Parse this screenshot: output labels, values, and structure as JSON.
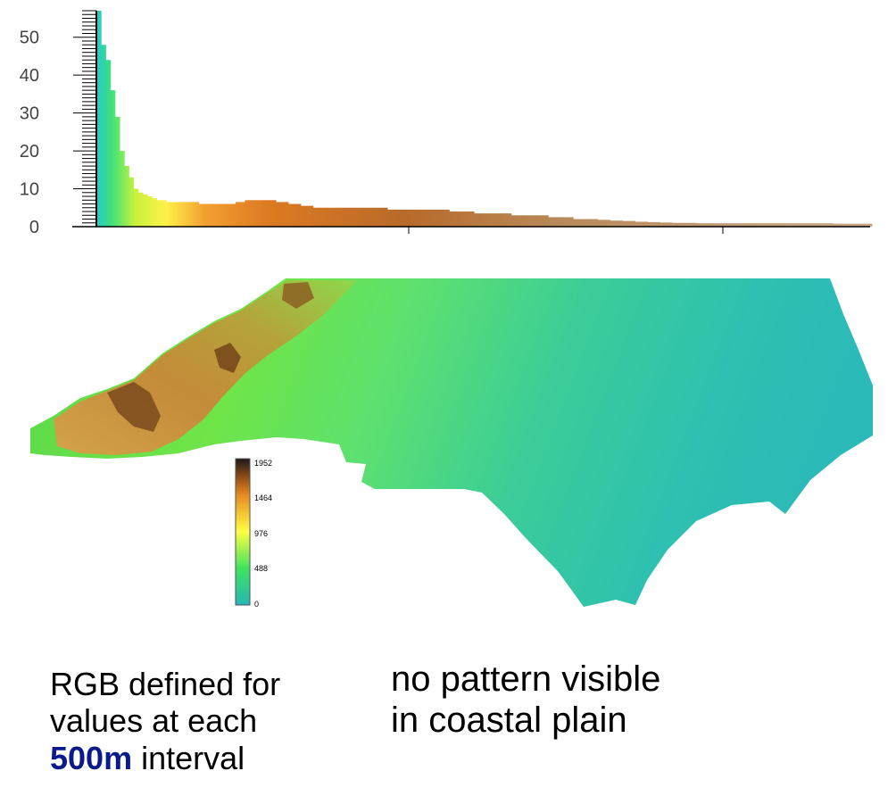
{
  "colors": {
    "accent": "#0a1a8c",
    "ramp": [
      "#26b7b7",
      "#3fe35f",
      "#ffff44",
      "#e88a22",
      "#8b4a16",
      "#1a1a1a"
    ]
  },
  "chart_data": {
    "type": "bar",
    "title": "",
    "xlabel": "",
    "ylabel": "",
    "ylim": [
      0,
      57
    ],
    "yticks": [
      "0",
      "10",
      "20",
      "30",
      "40",
      "50"
    ],
    "x": [
      0,
      15,
      30,
      45,
      60,
      75,
      90,
      105,
      120,
      135,
      150,
      165,
      180,
      195,
      210,
      225,
      240,
      260,
      280,
      300,
      330,
      360,
      390,
      420,
      450,
      480,
      510,
      540,
      580,
      620,
      660,
      700,
      740,
      780,
      820,
      860,
      900,
      940,
      980,
      1020,
      1060,
      1100,
      1140,
      1180,
      1220,
      1260,
      1300,
      1340,
      1380,
      1420,
      1460,
      1500,
      1540,
      1580,
      1620,
      1660,
      1700,
      1740,
      1780,
      1820,
      1860,
      1900,
      1940,
      1980,
      2020,
      2060,
      2100,
      2140,
      2180,
      2220,
      2260,
      2300,
      2340,
      2380,
      2420,
      2460,
      2500
    ],
    "values": [
      57,
      48,
      44,
      36,
      29,
      20,
      16,
      13,
      10,
      9,
      8.5,
      8,
      7.5,
      7,
      7,
      6.5,
      6.5,
      6.5,
      6.5,
      6.5,
      6,
      6,
      6,
      6,
      6.5,
      7,
      7,
      7,
      6.5,
      6,
      5.5,
      5,
      5,
      5,
      5,
      5,
      5,
      4.5,
      4.5,
      4.5,
      4.5,
      4.5,
      4,
      4,
      3.5,
      3.5,
      3.5,
      3,
      3,
      3,
      2.5,
      2.5,
      2,
      2,
      1.8,
      1.6,
      1.5,
      1.3,
      1.2,
      1.1,
      1,
      1,
      0.9,
      0.9,
      0.9,
      0.9,
      0.9,
      0.9,
      0.9,
      0.9,
      0.9,
      0.9,
      0.9,
      0.8,
      0.8,
      0.8,
      0.8
    ],
    "grid": false,
    "legend": {
      "labels": [
        "1952",
        "1464",
        "976",
        "488",
        "0"
      ]
    }
  },
  "captions": {
    "left_line1": "RGB defined for",
    "left_line2": "values at each",
    "left_line3_bold": "500m",
    "left_line3_rest": " interval",
    "right_line1": "no pattern visible",
    "right_line2": "in coastal plain"
  }
}
